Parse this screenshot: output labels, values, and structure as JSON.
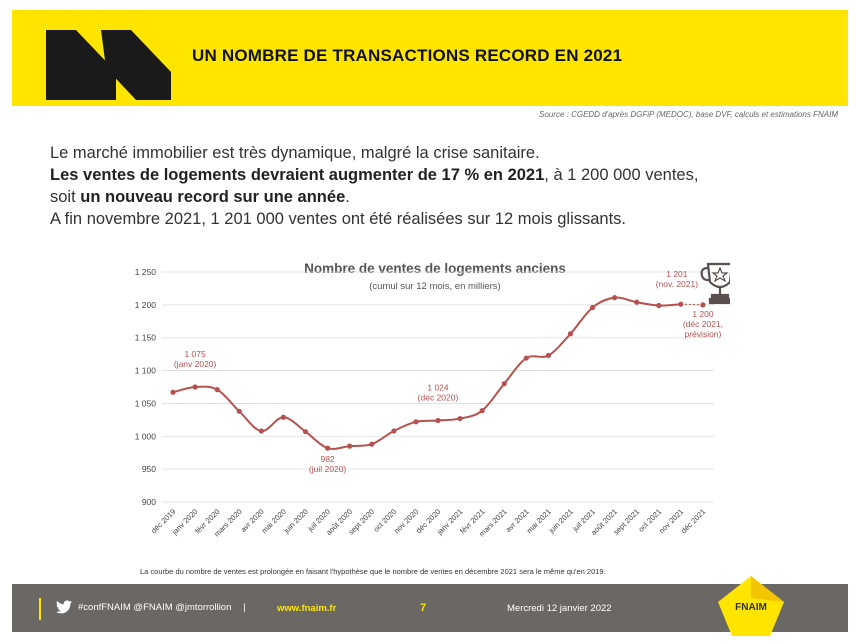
{
  "header": {
    "title": "UN NOMBRE DE TRANSACTIONS RECORD EN 2021"
  },
  "source": "Source : CGEDD d'après DGFiP (MEDOC), base DVF, calculs et estimations FNAIM",
  "intro": {
    "line1": "Le marché immobilier est très dynamique, malgré la crise sanitaire.",
    "line2_bold": "Les ventes de logements devraient augmenter de 17 % en 2021",
    "line2_rest": ", à 1 200 000 ventes,",
    "line3_pre": "soit ",
    "line3_bold": "un nouveau record sur une année",
    "line3_post": ".",
    "line4": "A fin novembre 2021, 1 201 000 ventes ont été réalisées sur 12 mois glissants."
  },
  "chart_data": {
    "type": "line",
    "title": "Nombre de ventes de logements anciens",
    "subtitle": "(cumul sur 12 mois, en milliers)",
    "ylim": [
      900,
      1250
    ],
    "yticks": [
      "900",
      "950",
      "1 000",
      "1 050",
      "1 100",
      "1 150",
      "1 200",
      "1 250"
    ],
    "categories": [
      "déc 2019",
      "janv 2020",
      "févr 2020",
      "mars 2020",
      "avr 2020",
      "mai 2020",
      "juin 2020",
      "juil 2020",
      "août 2020",
      "sept 2020",
      "oct 2020",
      "nov 2020",
      "déc 2020",
      "janv 2021",
      "févr 2021",
      "mars 2021",
      "avr 2021",
      "mai 2021",
      "juin 2021",
      "juil 2021",
      "août 2021",
      "sept 2021",
      "oct 2021",
      "nov 2021",
      "déc 2021"
    ],
    "series": [
      {
        "values": [
          1067,
          1075,
          1071,
          1038,
          1008,
          1029,
          1007,
          982,
          985,
          988,
          1008,
          1022,
          1024,
          1027,
          1039,
          1080,
          1119,
          1123,
          1156,
          1196,
          1211,
          1204,
          1199,
          1201,
          1200
        ]
      }
    ],
    "annotations": [
      {
        "index": 1,
        "lines": [
          "1 075",
          "(janv 2020)"
        ]
      },
      {
        "index": 7,
        "lines": [
          "982",
          "(juil 2020)"
        ]
      },
      {
        "index": 12,
        "lines": [
          "1 024",
          "(déc 2020)"
        ]
      },
      {
        "index": 23,
        "lines": [
          "1 201",
          "(nov. 2021)"
        ]
      },
      {
        "index": 24,
        "lines": [
          "1 200",
          "(déc 2021,",
          "prévision)"
        ]
      }
    ],
    "line_color": "#B5514E",
    "grid": true
  },
  "note": "La courbe du nombre de ventes est prolongée en faisant l'hypothèse que le nombre de ventes en décembre 2021 sera le même qu'en 2019.",
  "footer": {
    "social": "#confFNAIM @FNAIM @jmtorrollion",
    "separator": "|",
    "site": "www.fnaim.fr",
    "page": "7",
    "date": "Mercredi 12 janvier 2022",
    "brand": "FNAIM"
  },
  "colors": {
    "yellow": "#FFE500",
    "footer": "#6B6765",
    "line": "#B5514E"
  }
}
